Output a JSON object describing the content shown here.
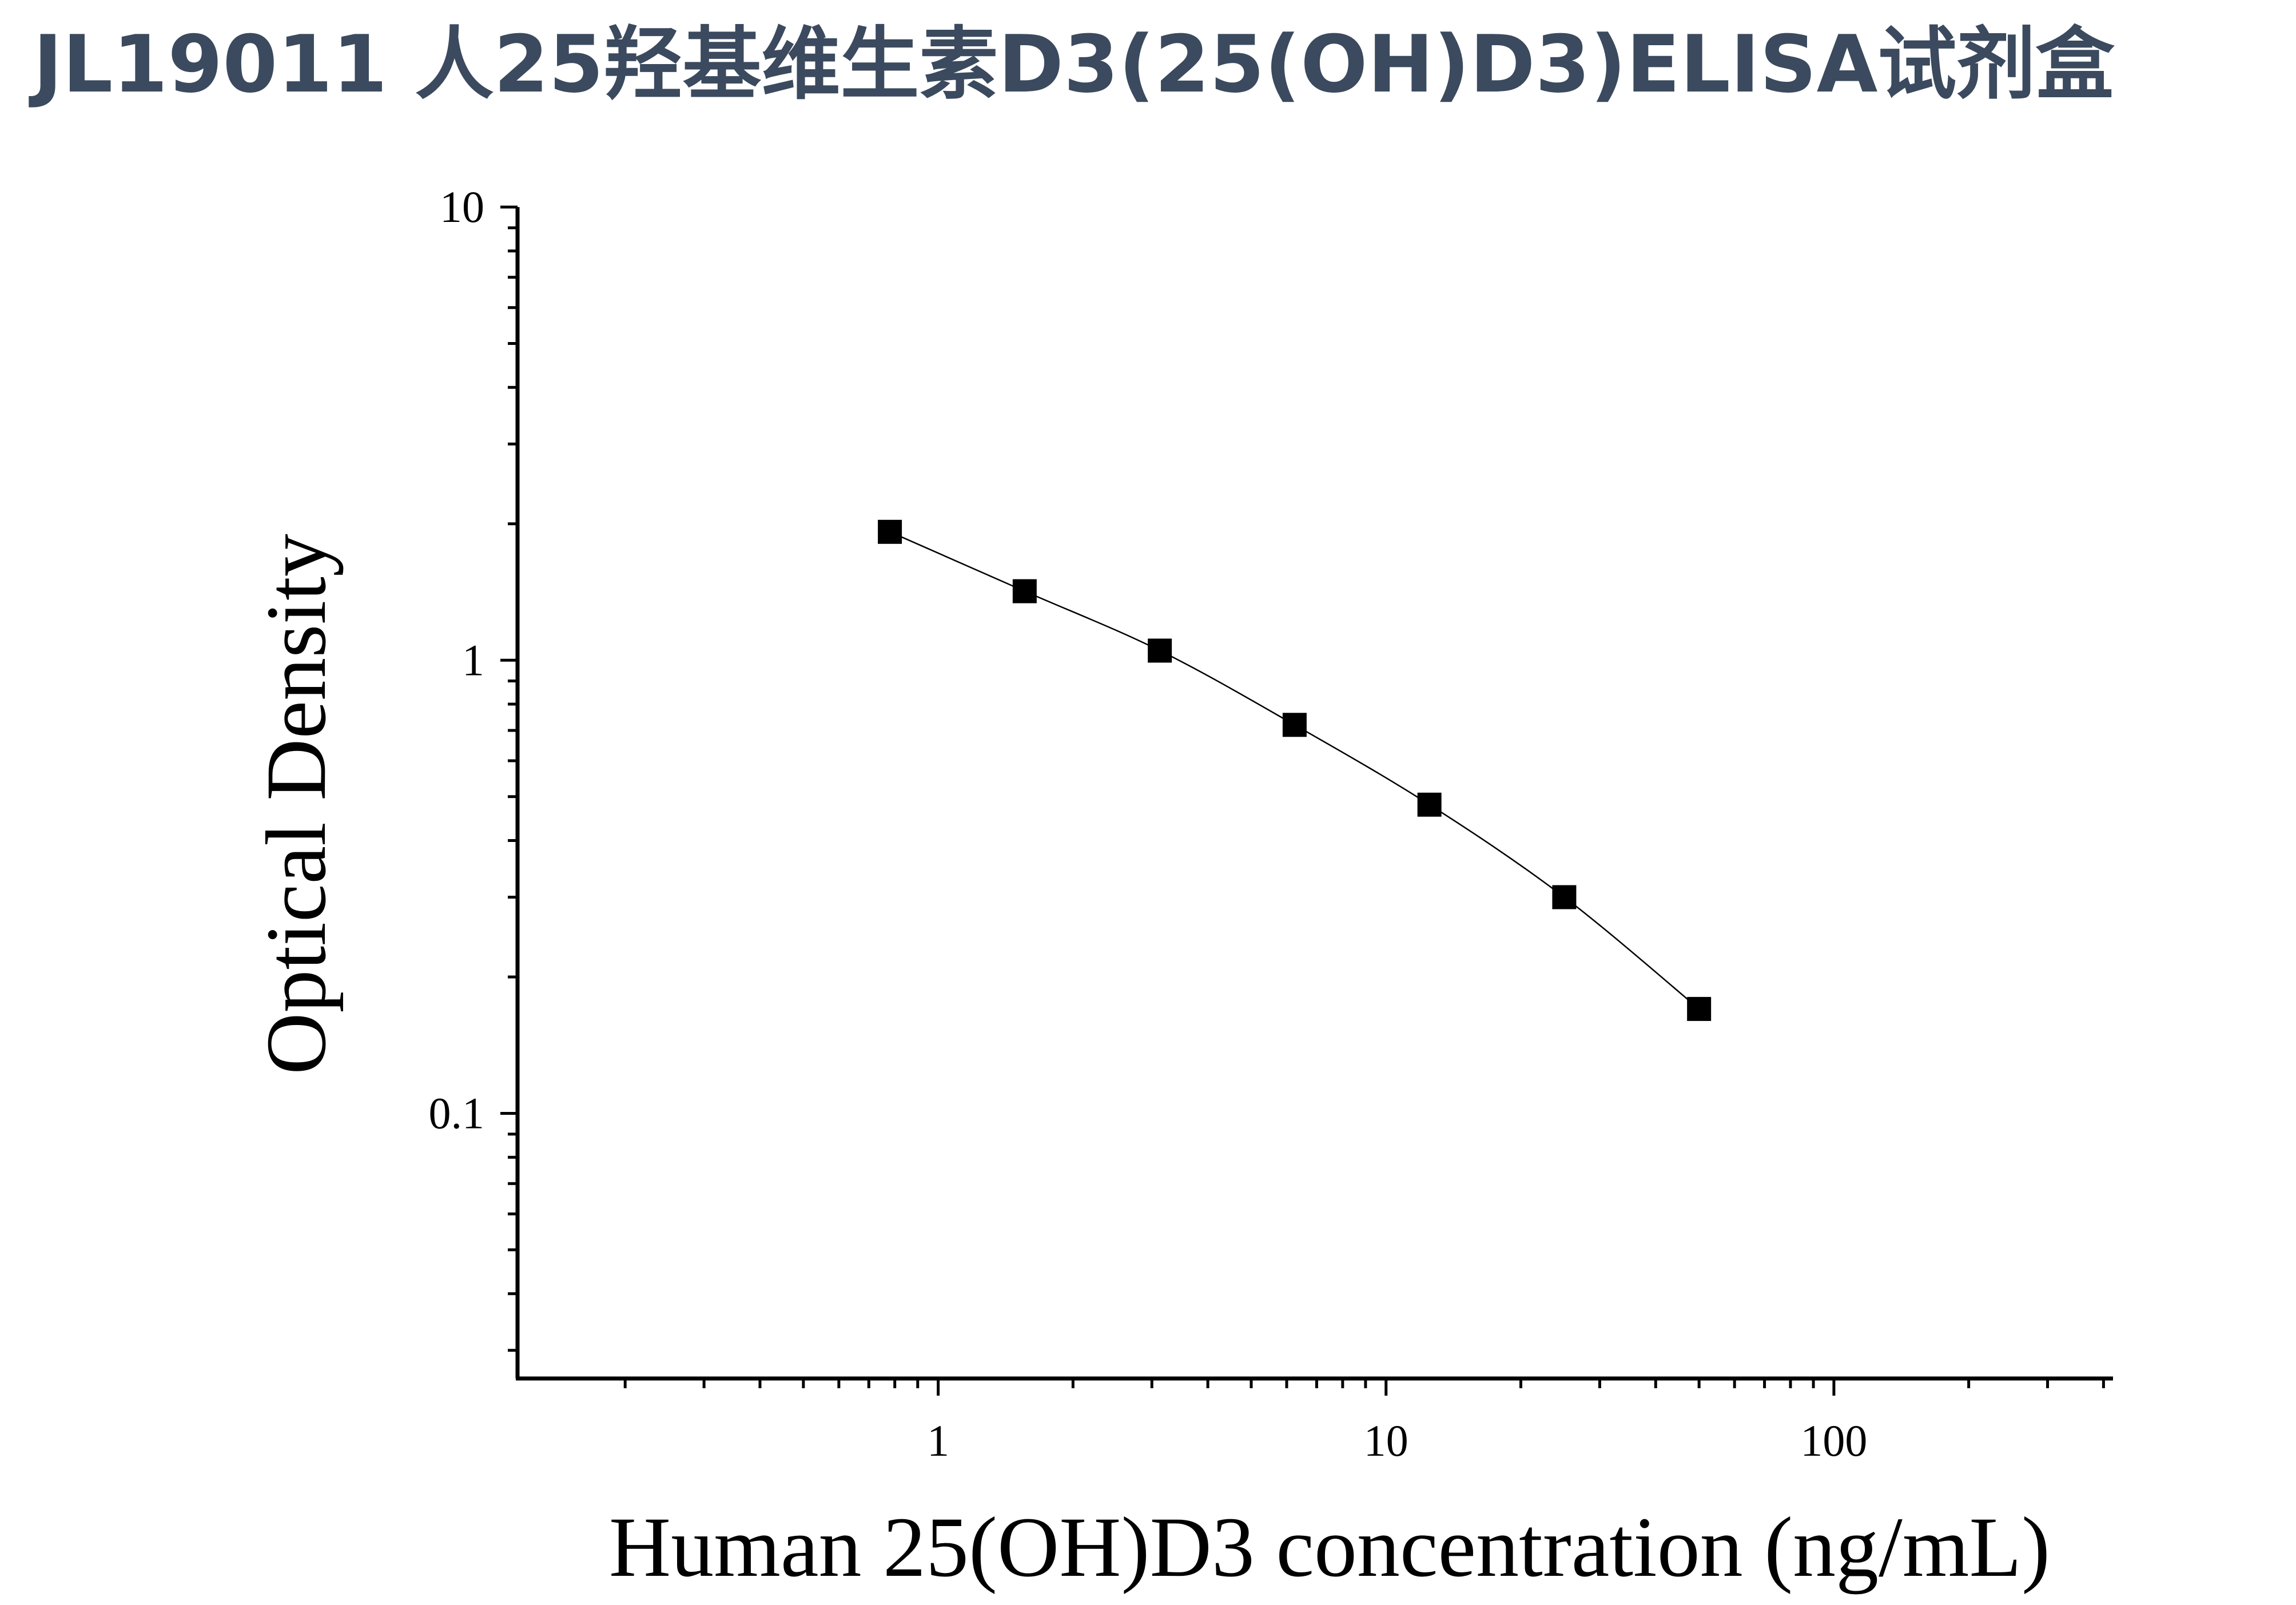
{
  "title": "JL19011 人25羟基维生素D3(25(OH)D3)ELISA试剂盒",
  "chart_data": {
    "type": "scatter",
    "xlabel": "Human 25(OH)D3 concentration (ng/mL)",
    "ylabel": "Optical Density",
    "x_scale": "log",
    "y_scale": "log",
    "xlim": [
      0.115,
      420
    ],
    "ylim": [
      0.026,
      10
    ],
    "x_ticks": [
      {
        "value": 1,
        "label": "1"
      },
      {
        "value": 10,
        "label": "10"
      },
      {
        "value": 100,
        "label": "100"
      }
    ],
    "y_ticks": [
      {
        "value": 0.1,
        "label": "0.1"
      },
      {
        "value": 1,
        "label": "1"
      },
      {
        "value": 10,
        "label": "10"
      }
    ],
    "grid": false,
    "legend": "none",
    "series": [
      {
        "marker": "square",
        "color": "#000000",
        "fit_line": true,
        "x": [
          0.78,
          1.56,
          3.125,
          6.25,
          12.5,
          25,
          50
        ],
        "y": [
          1.92,
          1.42,
          1.05,
          0.72,
          0.48,
          0.3,
          0.17
        ]
      }
    ]
  }
}
